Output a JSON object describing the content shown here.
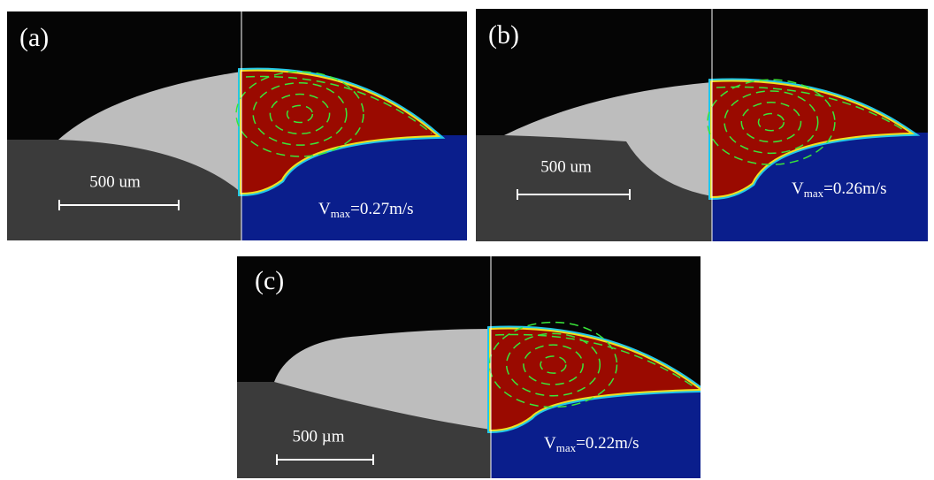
{
  "panels": [
    {
      "label": "(a)",
      "scale_bar": "500 um",
      "velocity": {
        "symbol": "V",
        "subscript": "max",
        "value": "=0.27m/s"
      }
    },
    {
      "label": "(b)",
      "scale_bar": "500 um",
      "velocity": {
        "symbol": "V",
        "subscript": "max",
        "value": "=0.26m/s"
      }
    },
    {
      "label": "(c)",
      "scale_bar": "500 µm",
      "velocity": {
        "symbol": "V",
        "subscript": "max",
        "value": "=0.22m/s"
      }
    }
  ]
}
